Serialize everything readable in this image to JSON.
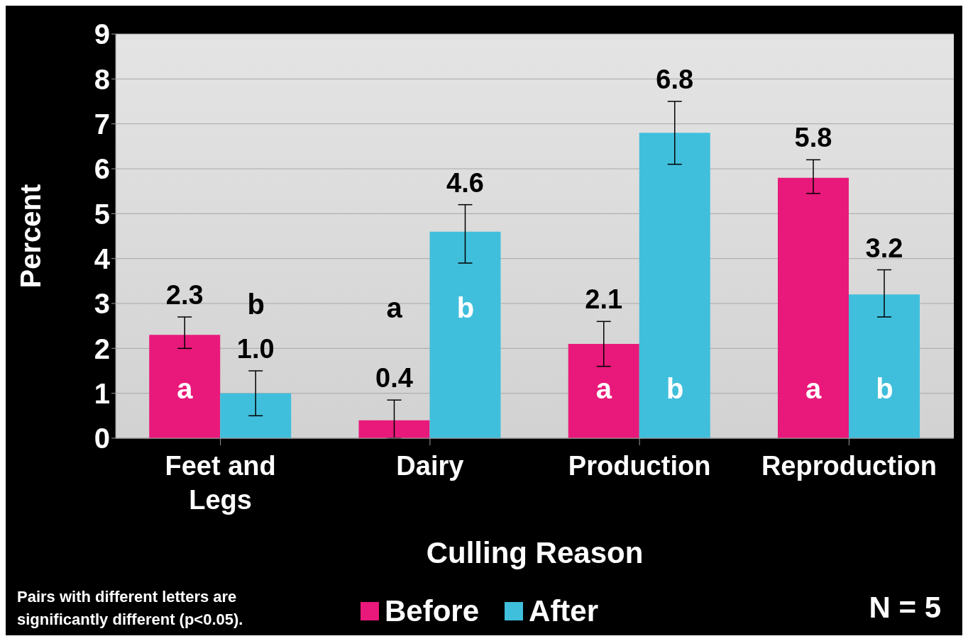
{
  "chart_data": {
    "type": "bar",
    "categories": [
      "Feet and Legs",
      "Dairy",
      "Production",
      "Reproduction"
    ],
    "series": [
      {
        "name": "Before",
        "color": "#e8197a",
        "values": [
          2.3,
          0.4,
          2.1,
          5.8
        ],
        "value_labels": [
          "2.3",
          "0.4",
          "2.1",
          "5.8"
        ],
        "errors": [
          [
            2.0,
            2.7
          ],
          [
            0,
            0.85
          ],
          [
            1.6,
            2.6
          ],
          [
            5.45,
            6.2
          ]
        ]
      },
      {
        "name": "After",
        "color": "#40bfdc",
        "values": [
          1.0,
          4.6,
          6.8,
          3.2
        ],
        "value_labels": [
          "1.0",
          "4.6",
          "6.8",
          "3.2"
        ],
        "errors": [
          [
            0.5,
            1.5
          ],
          [
            3.9,
            5.2
          ],
          [
            6.1,
            7.5
          ],
          [
            2.7,
            3.75
          ]
        ]
      }
    ],
    "ylabel": "Percent",
    "xlabel": "Culling Reason",
    "ylim": [
      0,
      9
    ],
    "yticks": [
      0,
      1,
      2,
      3,
      4,
      5,
      6,
      7,
      8,
      9
    ],
    "grid": "y",
    "legend": "bottom",
    "annotations": [
      {
        "text": "a",
        "x": "Feet and Legs",
        "y": 1.1
      },
      {
        "text": "b",
        "x": "Feet and Legs",
        "y": 1.0
      },
      {
        "text": "a",
        "x": "Dairy",
        "y": 2.9
      },
      {
        "text": "b",
        "x": "Dairy",
        "y": 2.9
      },
      {
        "text": "a",
        "x": "Production",
        "y": 1.1
      },
      {
        "text": "b",
        "x": "Production",
        "y": 1.1
      },
      {
        "text": "a",
        "x": "Reproduction",
        "y": 1.1
      },
      {
        "text": "b",
        "x": "Reproduction",
        "y": 1.1
      },
      "Pairs with different letters are significantly different (p<0.05).",
      "N = 5"
    ]
  }
}
